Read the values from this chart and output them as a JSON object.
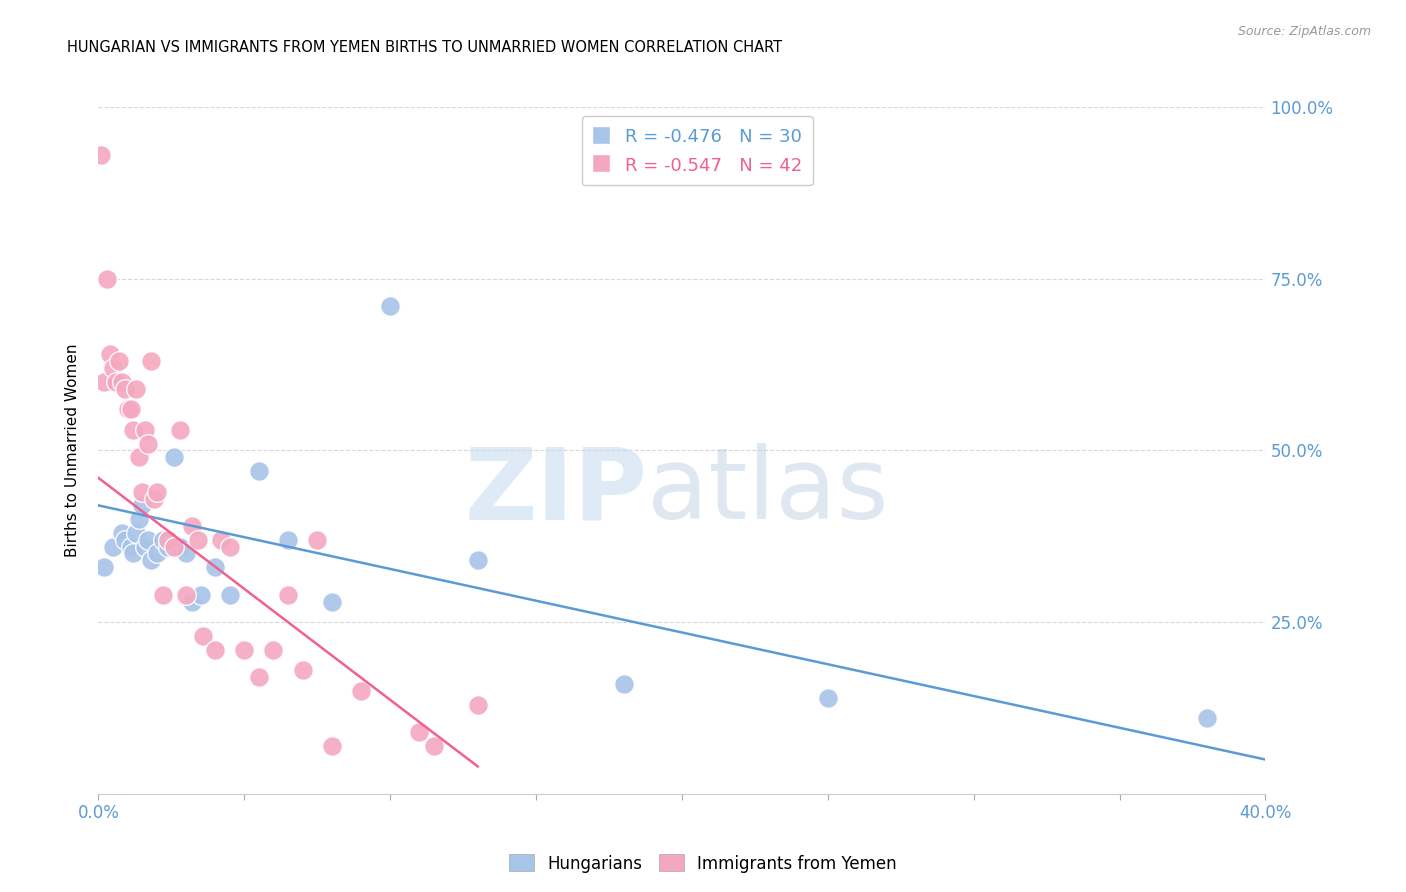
{
  "title": "HUNGARIAN VS IMMIGRANTS FROM YEMEN BIRTHS TO UNMARRIED WOMEN CORRELATION CHART",
  "source": "Source: ZipAtlas.com",
  "ylabel": "Births to Unmarried Women",
  "legend_blue": "R = -0.476   N = 30",
  "legend_pink": "R = -0.547   N = 42",
  "legend_label_blue": "Hungarians",
  "legend_label_pink": "Immigrants from Yemen",
  "blue_color": "#a8c4e8",
  "pink_color": "#f4a8c0",
  "blue_line_color": "#5b9bd5",
  "pink_line_color": "#f06090",
  "right_axis_color": "#5b9bd5",
  "blue_scatter_x": [
    0.2,
    0.5,
    0.8,
    0.9,
    1.1,
    1.2,
    1.3,
    1.4,
    1.5,
    1.6,
    1.7,
    1.8,
    2.0,
    2.2,
    2.4,
    2.6,
    2.8,
    3.0,
    3.2,
    3.5,
    4.0,
    4.5,
    5.5,
    6.5,
    8.0,
    10.0,
    13.0,
    18.0,
    25.0,
    38.0
  ],
  "blue_scatter_y": [
    33,
    36,
    38,
    37,
    36,
    35,
    38,
    40,
    42,
    36,
    37,
    34,
    35,
    37,
    36,
    49,
    36,
    35,
    28,
    29,
    33,
    29,
    47,
    37,
    28,
    71,
    34,
    16,
    14,
    11
  ],
  "pink_scatter_x": [
    0.1,
    0.2,
    0.3,
    0.4,
    0.5,
    0.6,
    0.7,
    0.8,
    0.9,
    1.0,
    1.1,
    1.2,
    1.3,
    1.4,
    1.5,
    1.6,
    1.7,
    1.8,
    1.9,
    2.0,
    2.2,
    2.4,
    2.6,
    2.8,
    3.0,
    3.2,
    3.4,
    3.6,
    4.0,
    4.2,
    4.5,
    5.0,
    5.5,
    6.0,
    6.5,
    7.0,
    7.5,
    8.0,
    9.0,
    11.0,
    11.5,
    13.0
  ],
  "pink_scatter_y": [
    93,
    60,
    75,
    64,
    62,
    60,
    63,
    60,
    59,
    56,
    56,
    53,
    59,
    49,
    44,
    53,
    51,
    63,
    43,
    44,
    29,
    37,
    36,
    53,
    29,
    39,
    37,
    23,
    21,
    37,
    36,
    21,
    17,
    21,
    29,
    18,
    37,
    7,
    15,
    9,
    7,
    13
  ],
  "blue_line_x": [
    0.0,
    40.0
  ],
  "blue_line_y": [
    42.0,
    5.0
  ],
  "pink_line_x": [
    0.0,
    13.0
  ],
  "pink_line_y": [
    46.0,
    4.0
  ],
  "xlim": [
    0.0,
    40.0
  ],
  "ylim": [
    0.0,
    100.0
  ],
  "xticks": [
    0.0,
    5.0,
    10.0,
    15.0,
    20.0,
    25.0,
    30.0,
    35.0,
    40.0
  ],
  "xticklabels": [
    "0.0%",
    "",
    "",
    "",
    "",
    "",
    "",
    "",
    "40.0%"
  ],
  "yticks": [
    0,
    25,
    50,
    75,
    100
  ],
  "yticklabels_right": [
    "",
    "25.0%",
    "50.0%",
    "75.0%",
    "100.0%"
  ],
  "background_color": "#ffffff",
  "grid_color": "#d8d8d8"
}
